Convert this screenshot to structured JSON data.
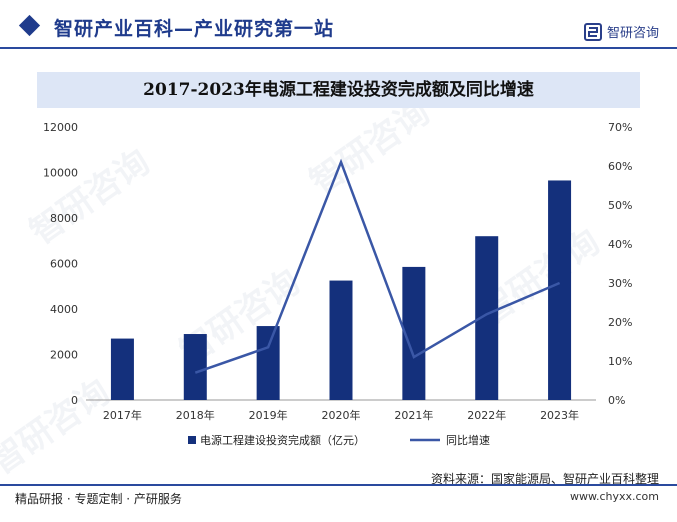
{
  "header": {
    "site_title": "智研产业百科—产业研究第一站",
    "brand_name": "智研咨询"
  },
  "chart_data": {
    "type": "bar",
    "title": "2017-2023年电源工程建设投资完成额及同比增速",
    "categories": [
      "2017年",
      "2018年",
      "2019年",
      "2020年",
      "2021年",
      "2022年",
      "2023年"
    ],
    "series": [
      {
        "name": "电源工程建设投资完成额（亿元）",
        "type": "bar",
        "axis": "left",
        "values": [
          2700,
          2900,
          3250,
          5250,
          5850,
          7200,
          9650
        ]
      },
      {
        "name": "同比增速",
        "type": "line",
        "axis": "right",
        "values": [
          null,
          0.07,
          0.135,
          0.61,
          0.11,
          0.22,
          0.3
        ]
      }
    ],
    "left_axis": {
      "ylim": [
        0,
        12000
      ],
      "ticks": [
        "0",
        "2000",
        "4000",
        "6000",
        "8000",
        "10000",
        "12000"
      ]
    },
    "right_axis": {
      "ylim": [
        0,
        0.7
      ],
      "ticks": [
        "0%",
        "10%",
        "20%",
        "30%",
        "40%",
        "50%",
        "60%",
        "70%"
      ]
    },
    "grid": false,
    "legend_position": "bottom",
    "colors": {
      "bar": "#14307c",
      "line": "#3a57a6"
    }
  },
  "source": "资料来源：国家能源局、智研产业百科整理",
  "footer": {
    "tagline": "精品研报 · 专题定制 · 产研服务",
    "url": "www.chyxx.com"
  }
}
